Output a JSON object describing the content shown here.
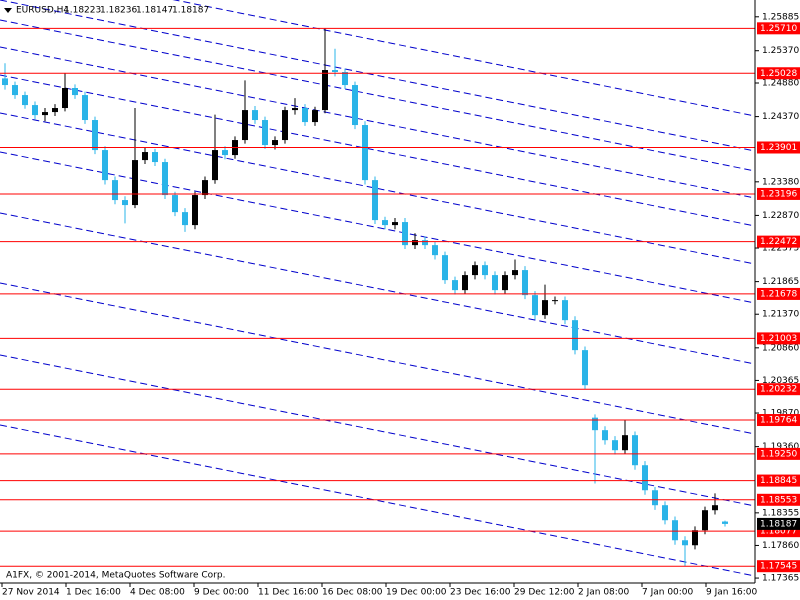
{
  "chart_data": {
    "type": "candlestick",
    "symbol": "EURUSD,H4",
    "footer": "A1FX, © 2001-2014, MetaQuotes Software Corp.",
    "ylim": [
      1.1729,
      1.2614
    ],
    "yticks": [
      {
        "value": 1.25885,
        "label": "1.25885"
      },
      {
        "value": 1.2537,
        "label": "1.25370"
      },
      {
        "value": 1.2488,
        "label": "1.24880"
      },
      {
        "value": 1.2437,
        "label": "1.24370"
      },
      {
        "value": 1.2338,
        "label": "1.23380"
      },
      {
        "value": 1.2287,
        "label": "1.22870"
      },
      {
        "value": 1.22375,
        "label": "1.22375"
      },
      {
        "value": 1.21865,
        "label": "1.21865"
      },
      {
        "value": 1.2137,
        "label": "1.21370"
      },
      {
        "value": 1.2086,
        "label": "1.20860"
      },
      {
        "value": 1.20365,
        "label": "1.20365"
      },
      {
        "value": 1.1987,
        "label": "1.19870"
      },
      {
        "value": 1.1936,
        "label": "1.19360"
      },
      {
        "value": 1.18355,
        "label": "1.18355"
      },
      {
        "value": 1.1786,
        "label": "1.17860"
      },
      {
        "value": 1.17365,
        "label": "1.17365"
      }
    ],
    "levels": [
      {
        "value": 1.2571,
        "label": "1.25710"
      },
      {
        "value": 1.25028,
        "label": "1.25028"
      },
      {
        "value": 1.23901,
        "label": "1.23901"
      },
      {
        "value": 1.23196,
        "label": "1.23196"
      },
      {
        "value": 1.22472,
        "label": "1.22472"
      },
      {
        "value": 1.21678,
        "label": "1.21678"
      },
      {
        "value": 1.21003,
        "label": "1.21003"
      },
      {
        "value": 1.20232,
        "label": "1.20232"
      },
      {
        "value": 1.19764,
        "label": "1.19764"
      },
      {
        "value": 1.1925,
        "label": "1.19250"
      },
      {
        "value": 1.18845,
        "label": "1.18845"
      },
      {
        "value": 1.18553,
        "label": "1.18553"
      },
      {
        "value": 1.18077,
        "label": "1.18077"
      },
      {
        "value": 1.17545,
        "label": "1.17545"
      }
    ],
    "level_color": "#ff0000",
    "up_color": "#000000",
    "down_color": "#2ab4e8",
    "trend_color": "#0000cc",
    "xtick_labels": [
      "27 Nov 2014",
      "1 Dec 16:00",
      "4 Dec 08:00",
      "9 Dec 00:00",
      "11 Dec 16:00",
      "16 Dec 08:00",
      "19 Dec 00:00",
      "23 Dec 16:00",
      "29 Dec 12:00",
      "2 Jan 08:00",
      "7 Jan 00:00",
      "9 Jan 16:00"
    ],
    "candles": [
      [
        1.2495,
        1.2518,
        1.2478,
        1.24849
      ],
      [
        1.24849,
        1.249,
        1.2464,
        1.24697
      ],
      [
        1.24697,
        1.2475,
        1.2449,
        1.24545
      ],
      [
        1.24545,
        1.246,
        1.2433,
        1.24393
      ],
      [
        1.24393,
        1.245,
        1.243,
        1.24439
      ],
      [
        1.24439,
        1.2456,
        1.2438,
        1.245
      ],
      [
        1.245,
        1.2503,
        1.2445,
        1.24804
      ],
      [
        1.24804,
        1.2486,
        1.2464,
        1.24697
      ],
      [
        1.24697,
        1.2475,
        1.2426,
        1.24318
      ],
      [
        1.24318,
        1.2437,
        1.238,
        1.23862
      ],
      [
        1.23862,
        1.2392,
        1.2334,
        1.23406
      ],
      [
        1.23406,
        1.2346,
        1.2304,
        1.23103
      ],
      [
        1.23103,
        1.2316,
        1.2275,
        1.23027
      ],
      [
        1.23027,
        1.245,
        1.2298,
        1.2371
      ],
      [
        1.2371,
        1.239,
        1.2365,
        1.23832
      ],
      [
        1.23832,
        1.2388,
        1.2362,
        1.2368
      ],
      [
        1.2368,
        1.2373,
        1.2312,
        1.23179
      ],
      [
        1.23179,
        1.2323,
        1.2286,
        1.2292
      ],
      [
        1.2292,
        1.2298,
        1.2262,
        1.22723
      ],
      [
        1.22723,
        1.2323,
        1.2266,
        1.23179
      ],
      [
        1.23179,
        1.2346,
        1.2312,
        1.23406
      ],
      [
        1.23406,
        1.244,
        1.2335,
        1.23862
      ],
      [
        1.23862,
        1.2392,
        1.2372,
        1.23786
      ],
      [
        1.23786,
        1.2407,
        1.2373,
        1.24014
      ],
      [
        1.24014,
        1.2492,
        1.2396,
        1.24469
      ],
      [
        1.24469,
        1.2453,
        1.2426,
        1.24318
      ],
      [
        1.24318,
        1.2437,
        1.2388,
        1.23938
      ],
      [
        1.23938,
        1.2407,
        1.2387,
        1.24014
      ],
      [
        1.24014,
        1.2452,
        1.2396,
        1.24469
      ],
      [
        1.24469,
        1.2465,
        1.244,
        1.245
      ],
      [
        1.245,
        1.2456,
        1.2423,
        1.24287
      ],
      [
        1.24287,
        1.2452,
        1.2423,
        1.24469
      ],
      [
        1.24469,
        1.2571,
        1.2442,
        1.25077
      ],
      [
        1.25077,
        1.254,
        1.2498,
        1.25047
      ],
      [
        1.25047,
        1.251,
        1.2479,
        1.24849
      ],
      [
        1.24849,
        1.249,
        1.2418,
        1.24242
      ],
      [
        1.24242,
        1.243,
        1.2334,
        1.23406
      ],
      [
        1.23406,
        1.2346,
        1.2274,
        1.22799
      ],
      [
        1.22799,
        1.2285,
        1.2266,
        1.22723
      ],
      [
        1.22723,
        1.2283,
        1.2266,
        1.22769
      ],
      [
        1.22769,
        1.2283,
        1.2236,
        1.22419
      ],
      [
        1.22419,
        1.226,
        1.2236,
        1.22495
      ],
      [
        1.22495,
        1.2255,
        1.2236,
        1.22419
      ],
      [
        1.22419,
        1.2247,
        1.222,
        1.22267
      ],
      [
        1.22267,
        1.2232,
        1.2183,
        1.21888
      ],
      [
        1.21888,
        1.2194,
        1.2167,
        1.21736
      ],
      [
        1.21736,
        1.2202,
        1.2168,
        1.21964
      ],
      [
        1.21964,
        1.2217,
        1.219,
        1.22115
      ],
      [
        1.22115,
        1.2217,
        1.219,
        1.21964
      ],
      [
        1.21964,
        1.2202,
        1.2167,
        1.21736
      ],
      [
        1.21736,
        1.2202,
        1.2168,
        1.21964
      ],
      [
        1.21964,
        1.222,
        1.219,
        1.2204
      ],
      [
        1.2204,
        1.221,
        1.216,
        1.2166
      ],
      [
        1.2166,
        1.2172,
        1.2129,
        1.21356
      ],
      [
        1.21356,
        1.2182,
        1.213,
        1.21584
      ],
      [
        1.21584,
        1.2164,
        1.2152,
        1.21584
      ],
      [
        1.21584,
        1.2164,
        1.2122,
        1.2128
      ],
      [
        1.2128,
        1.2134,
        1.2076,
        1.20825
      ],
      [
        1.20825,
        1.2088,
        1.2023,
        1.20293
      ],
      [
        1.198,
        1.1985,
        1.188,
        1.1961
      ],
      [
        1.1961,
        1.1967,
        1.1939,
        1.19458
      ],
      [
        1.19458,
        1.1952,
        1.1924,
        1.19306
      ],
      [
        1.19306,
        1.1976,
        1.1925,
        1.19534
      ],
      [
        1.19534,
        1.1959,
        1.1901,
        1.19078
      ],
      [
        1.19078,
        1.1914,
        1.1863,
        1.18698
      ],
      [
        1.18698,
        1.1875,
        1.184,
        1.18471
      ],
      [
        1.18471,
        1.1853,
        1.1818,
        1.18243
      ],
      [
        1.18243,
        1.183,
        1.1787,
        1.17939
      ],
      [
        1.17939,
        1.18,
        1.17545,
        1.17863
      ],
      [
        1.17863,
        1.1815,
        1.178,
        1.18091
      ],
      [
        1.18091,
        1.1845,
        1.1803,
        1.18395
      ],
      [
        1.18395,
        1.1865,
        1.1833,
        1.18471
      ],
      [
        1.18223,
        1.18236,
        1.18147,
        1.18187
      ]
    ]
  }
}
